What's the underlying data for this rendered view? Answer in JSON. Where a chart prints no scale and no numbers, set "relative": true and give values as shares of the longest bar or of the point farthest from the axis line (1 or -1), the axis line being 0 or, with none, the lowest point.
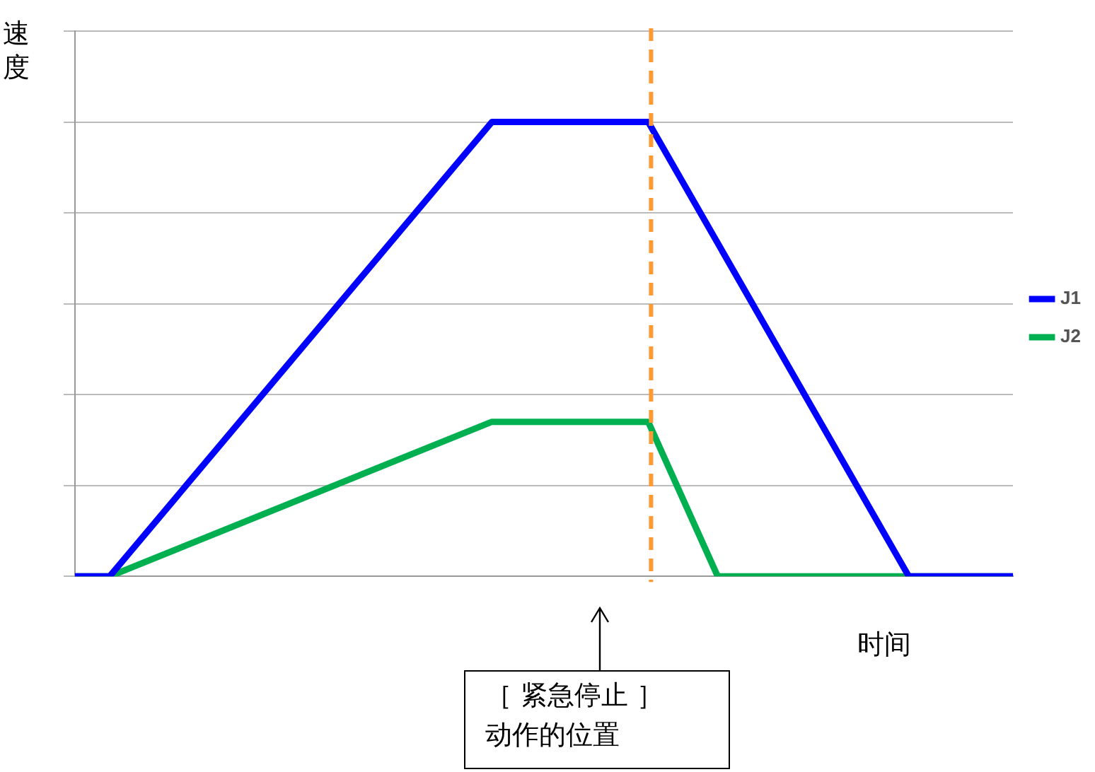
{
  "chart_data": {
    "type": "line",
    "relative": true,
    "xlabel": "时间",
    "ylabel": "速度",
    "categories": [
      null,
      null,
      null,
      null,
      null,
      null,
      null,
      null,
      null,
      null,
      null,
      null,
      null,
      null,
      null,
      null,
      null,
      null,
      null,
      null,
      null,
      null,
      null,
      null,
      null,
      null,
      null,
      null,
      null,
      null,
      null,
      null,
      null,
      null,
      null,
      null,
      null,
      null,
      null,
      null,
      null,
      null,
      null,
      null,
      null,
      null,
      null,
      null,
      null,
      null,
      null,
      null,
      null,
      null,
      null
    ],
    "series": [
      {
        "name": "J1",
        "color": "#0000ff",
        "values": [
          0,
          null,
          0,
          null,
          null,
          null,
          null,
          null,
          null,
          null,
          null,
          null,
          null,
          null,
          null,
          null,
          null,
          null,
          null,
          null,
          null,
          null,
          null,
          null,
          1,
          null,
          null,
          null,
          null,
          null,
          null,
          null,
          null,
          1,
          null,
          null,
          null,
          null,
          null,
          null,
          null,
          null,
          null,
          null,
          null,
          null,
          null,
          null,
          0,
          null,
          null,
          null,
          null,
          null,
          0
        ]
      },
      {
        "name": "J2",
        "color": "#00b050",
        "values": [
          0,
          null,
          0,
          null,
          null,
          null,
          null,
          null,
          null,
          null,
          null,
          null,
          null,
          null,
          null,
          null,
          null,
          null,
          null,
          null,
          null,
          null,
          null,
          null,
          0.34,
          null,
          null,
          null,
          null,
          null,
          null,
          null,
          null,
          0.34,
          null,
          null,
          null,
          0,
          null,
          null,
          null,
          null,
          null,
          null,
          null,
          null,
          null,
          null,
          null,
          null,
          null,
          null,
          null,
          null,
          0
        ]
      }
    ],
    "annotations": [
      "［ 紧急停止 ］",
      "动作的位置"
    ],
    "legend": "right",
    "grid": "y"
  }
}
